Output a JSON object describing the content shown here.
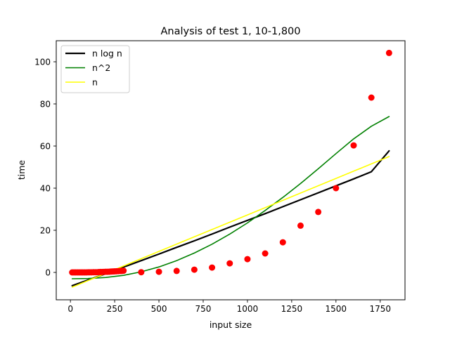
{
  "chart_data": {
    "type": "scatter",
    "title": "Analysis of test 1, 10-1,800",
    "xlabel": "input size",
    "ylabel": "time",
    "xlim": [
      -80,
      1890
    ],
    "ylim": [
      -13,
      110
    ],
    "xticks": [
      0,
      250,
      500,
      750,
      1000,
      1250,
      1500,
      1750
    ],
    "yticks": [
      0,
      20,
      40,
      60,
      80,
      100
    ],
    "grid": false,
    "legend_position": "top-left",
    "scatter": {
      "color": "#ff0000",
      "x": [
        10,
        20,
        30,
        40,
        50,
        60,
        70,
        80,
        90,
        100,
        110,
        120,
        130,
        140,
        150,
        160,
        170,
        180,
        190,
        200,
        210,
        220,
        230,
        240,
        250,
        260,
        270,
        280,
        290,
        300,
        400,
        500,
        600,
        700,
        800,
        900,
        1000,
        1100,
        1200,
        1300,
        1400,
        1500,
        1600,
        1700,
        1800
      ],
      "y": [
        0.0,
        0.0,
        0.0,
        0.0,
        0.0,
        0.0,
        0.0,
        0.0,
        0.0,
        0.05,
        0.05,
        0.05,
        0.1,
        0.1,
        0.1,
        0.15,
        0.2,
        0.2,
        0.25,
        0.3,
        0.3,
        0.35,
        0.4,
        0.45,
        0.5,
        0.55,
        0.6,
        0.65,
        0.7,
        0.8,
        0.1,
        0.3,
        0.7,
        1.3,
        2.3,
        4.3,
        6.3,
        9.0,
        14.3,
        22.2,
        28.7,
        40.0,
        60.3,
        83.0,
        104.2
      ]
    },
    "series": [
      {
        "name": "n log n",
        "color": "#000000",
        "x": [
          10,
          100,
          200,
          300,
          400,
          500,
          600,
          700,
          800,
          900,
          1000,
          1100,
          1200,
          1300,
          1400,
          1500,
          1600,
          1700,
          1800
        ],
        "y": [
          -6.3,
          -3.6,
          -0.6,
          2.5,
          5.6,
          8.7,
          11.9,
          15.0,
          18.2,
          21.5,
          24.7,
          27.9,
          31.2,
          34.5,
          37.8,
          41.1,
          44.4,
          47.8,
          57.7
        ]
      },
      {
        "name": "n^2",
        "color": "#008000",
        "x": [
          10,
          100,
          200,
          300,
          400,
          500,
          600,
          700,
          800,
          900,
          1000,
          1100,
          1200,
          1300,
          1400,
          1500,
          1600,
          1700,
          1800
        ],
        "y": [
          -3.0,
          -2.9,
          -2.4,
          -1.4,
          0.3,
          2.6,
          5.6,
          9.2,
          13.4,
          18.2,
          23.5,
          29.4,
          35.6,
          42.2,
          49.2,
          56.4,
          63.4,
          69.4,
          74.0
        ]
      },
      {
        "name": "n",
        "color": "#ffff00",
        "x": [
          10,
          1800
        ],
        "y": [
          -7.0,
          55.0
        ]
      }
    ]
  }
}
